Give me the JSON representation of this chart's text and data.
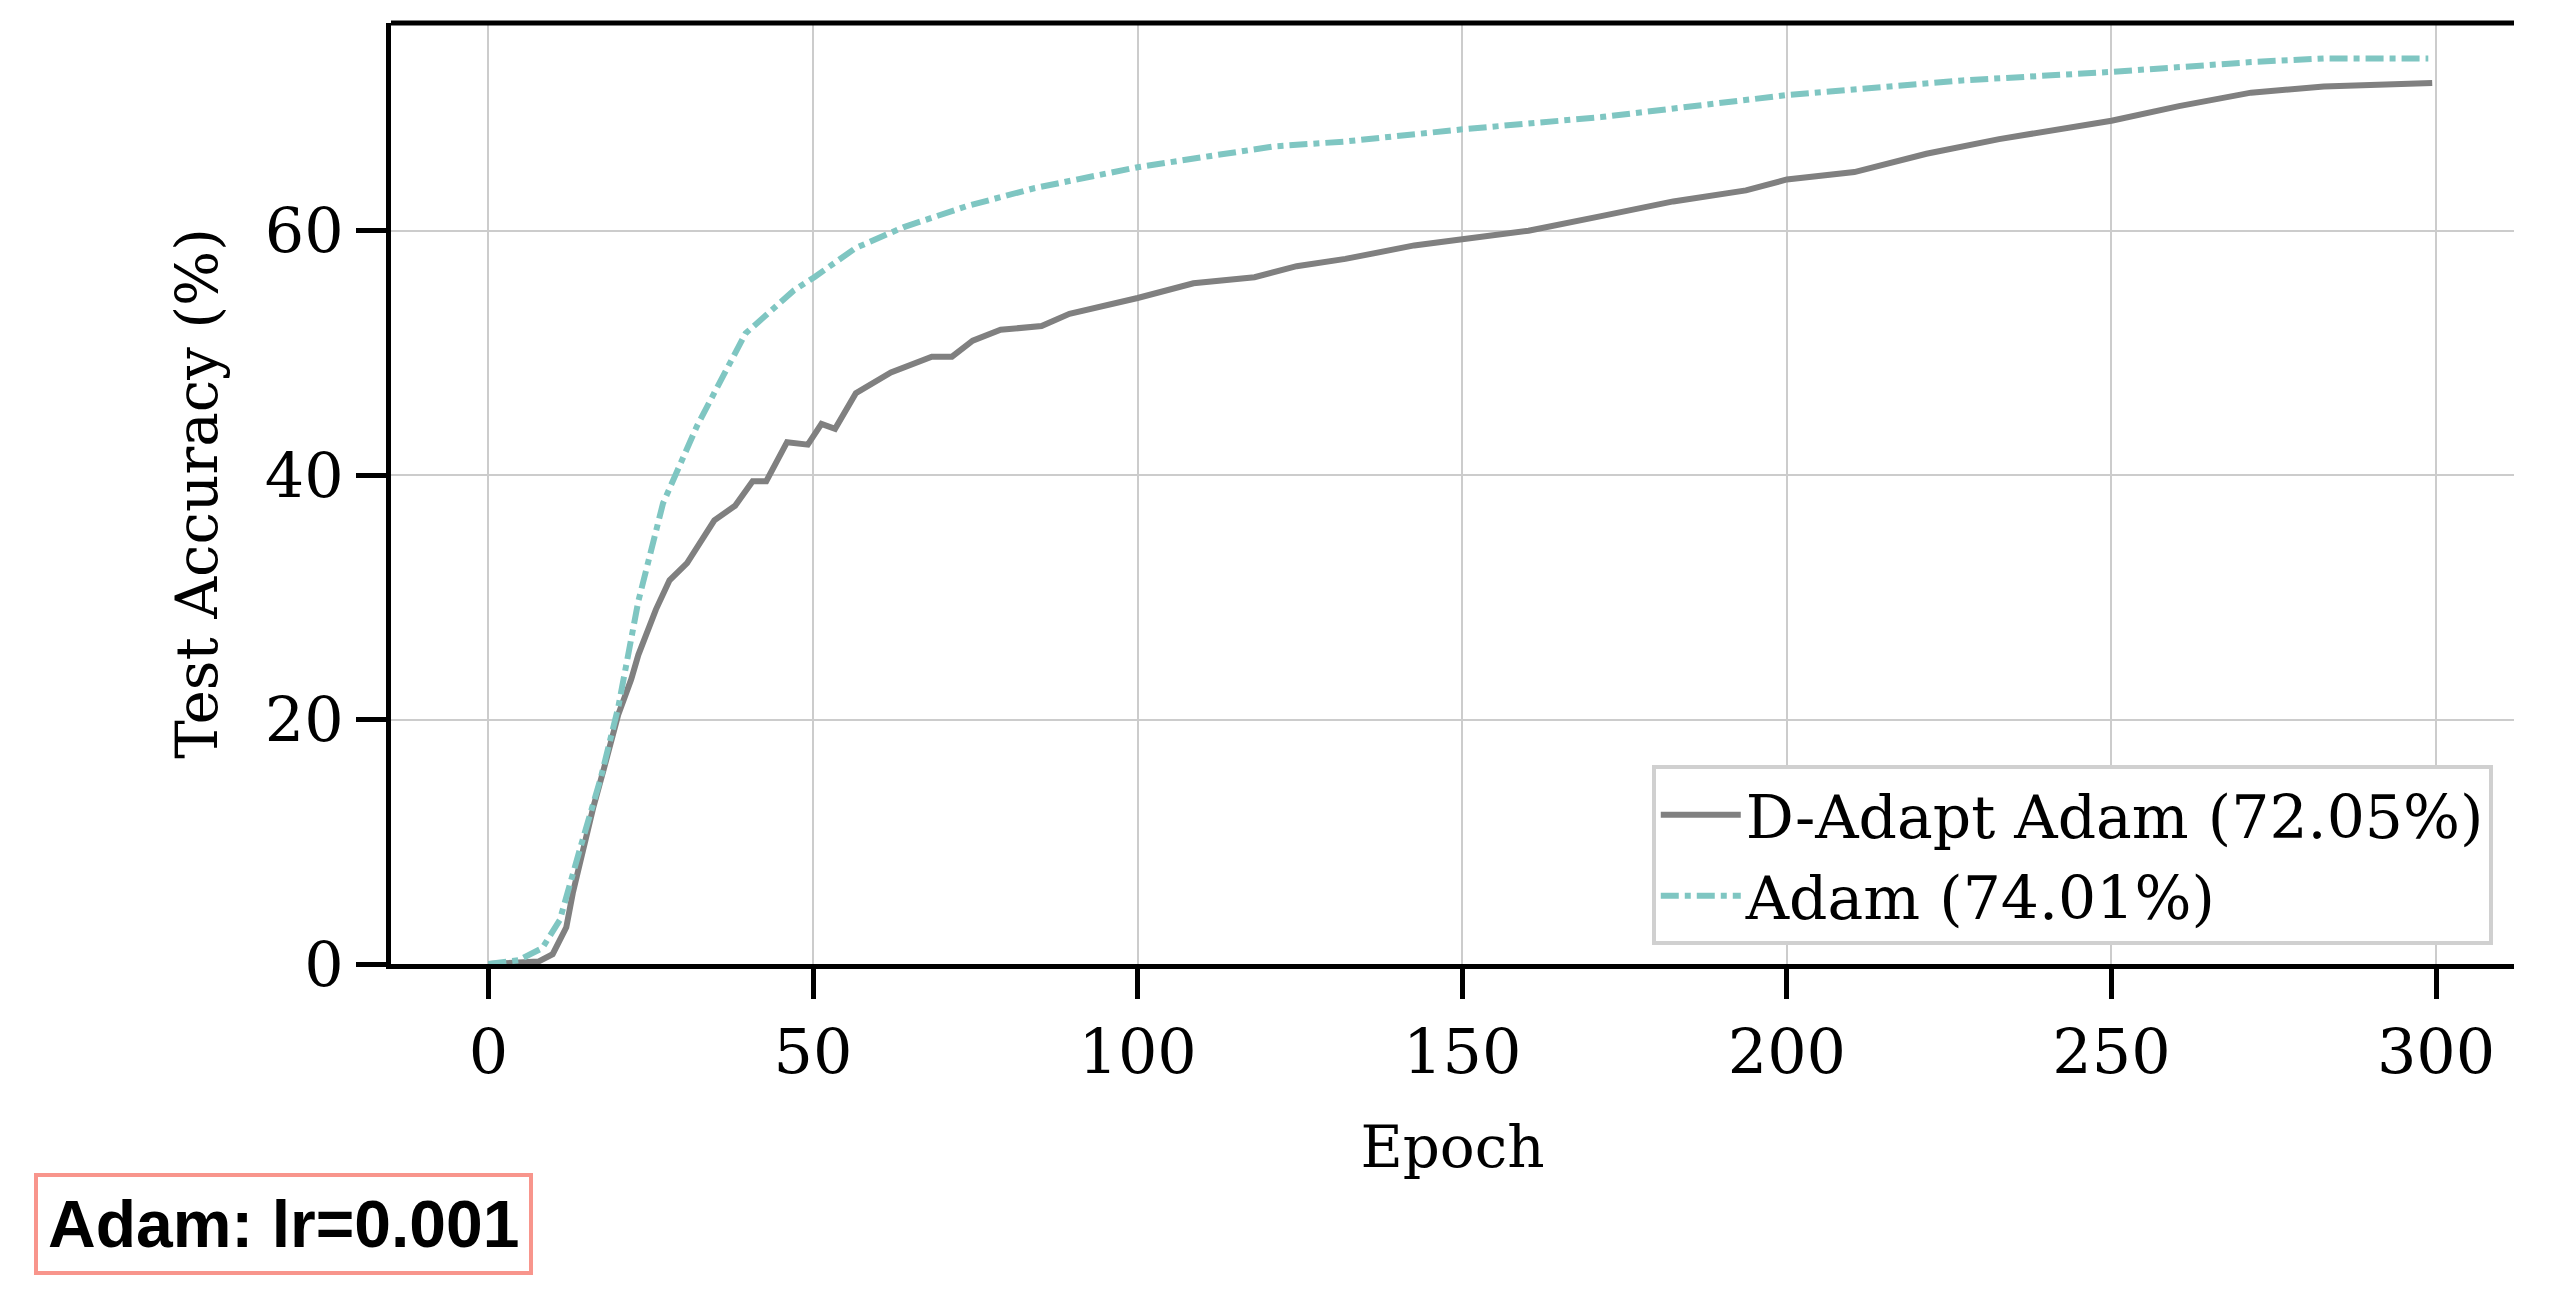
{
  "chart_data": {
    "type": "line",
    "xlabel": "Epoch",
    "ylabel": "Test Accuracy (%)",
    "xlim": [
      -15,
      312
    ],
    "xticks": [
      0,
      50,
      100,
      150,
      200,
      250,
      300
    ],
    "ylim": [
      0,
      77
    ],
    "yticks": [
      0,
      20,
      40,
      60
    ],
    "grid": true,
    "legend": "bottom right",
    "series": [
      {
        "name": "D-Adapt Adam (72.05%)",
        "color": "#808080",
        "line_style": "solid",
        "x": [
          0,
          7.7,
          9.9,
          12,
          13,
          16.2,
          17.8,
          20,
          22,
          23.1,
          25.8,
          27.9,
          30.6,
          34.8,
          38,
          40.7,
          42.8,
          46,
          49.2,
          51.3,
          53.4,
          56.6,
          62,
          68.3,
          71.4,
          74.6,
          78.9,
          85.2,
          89.5,
          100,
          108.6,
          118,
          124.5,
          132,
          142.6,
          150,
          160.2,
          171.4,
          182.5,
          193.7,
          200,
          210.4,
          221.5,
          232.7,
          250,
          260.4,
          271.5,
          282.7,
          299.4
        ],
        "values": [
          0,
          0.2,
          0.8,
          3,
          5.8,
          12.9,
          16,
          20.4,
          23.3,
          25.3,
          29,
          31.4,
          32.8,
          36.3,
          37.5,
          39.5,
          39.5,
          42.7,
          42.5,
          44.2,
          43.8,
          46.7,
          48.4,
          49.7,
          49.7,
          51,
          51.9,
          52.2,
          53.2,
          54.5,
          55.7,
          56.2,
          57.1,
          57.7,
          58.8,
          59.3,
          60,
          61.2,
          62.4,
          63.3,
          64.2,
          64.8,
          66.3,
          67.5,
          69,
          70.2,
          71.3,
          71.8,
          72.1
        ]
      },
      {
        "name": "Adam (74.01%)",
        "color": "#7fc6c2",
        "line_style": "dashdot",
        "x": [
          0,
          4.6,
          8.3,
          11,
          14.1,
          17.3,
          20,
          23.1,
          26.9,
          32.2,
          39.6,
          47,
          50.2,
          56.6,
          64,
          73.6,
          84.2,
          100,
          111,
          121,
          131.9,
          150,
          171.4,
          200,
          227,
          250,
          271.5,
          282.7,
          298.8
        ],
        "values": [
          0,
          0.3,
          1.3,
          3.6,
          9.4,
          15.2,
          21,
          29.7,
          37.7,
          44.1,
          51.6,
          55.1,
          56.2,
          58.6,
          60.3,
          62,
          63.5,
          65.2,
          66.1,
          66.9,
          67.3,
          68.3,
          69.3,
          71.1,
          72.3,
          73,
          73.8,
          74.1,
          74.1
        ]
      }
    ],
    "annotations": [
      "Adam: lr=0.001"
    ]
  }
}
